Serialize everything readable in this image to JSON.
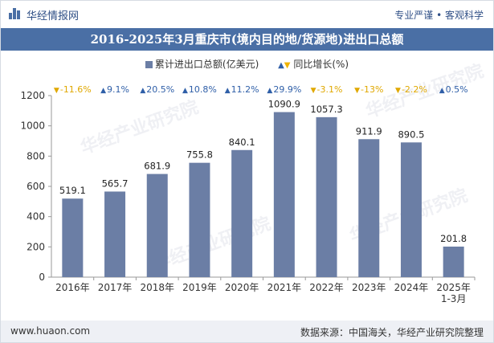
{
  "header": {
    "brand": "华经情报网",
    "tagline": "专业严谨 • 客观科学"
  },
  "title": "2016-2025年3月重庆市(境内目的地/货源地)进出口总额",
  "legend": {
    "bar_label": "累计进出口总额(亿美元)",
    "growth_label": "同比增长(%)"
  },
  "watermark": "华经产业研究院",
  "footer": {
    "site": "www.huaon.com",
    "source": "数据来源：中国海关，华经产业研究院整理"
  },
  "colors": {
    "bar": "#6b7ea5",
    "title_bg": "#4a6fa5",
    "growth_up": "#2f5fa8",
    "growth_down": "#f0b400"
  },
  "chart_data": {
    "type": "bar",
    "title": "2016-2025年3月重庆市(境内目的地/货源地)进出口总额",
    "categories": [
      "2016年",
      "2017年",
      "2018年",
      "2019年",
      "2020年",
      "2021年",
      "2022年",
      "2023年",
      "2024年",
      "2025年\n1-3月"
    ],
    "series": [
      {
        "name": "累计进出口总额(亿美元)",
        "values": [
          519.1,
          565.7,
          681.9,
          755.8,
          840.1,
          1090.9,
          1057.3,
          911.9,
          890.5,
          201.8
        ]
      },
      {
        "name": "同比增长(%)",
        "values": [
          -11.6,
          9.1,
          20.5,
          10.8,
          11.2,
          29.9,
          -3.1,
          -13,
          -2.2,
          0.5
        ],
        "labels": [
          "-11.6%",
          "9.1%",
          "20.5%",
          "10.8%",
          "11.2%",
          "29.9%",
          "-3.1%",
          "-13%",
          "-2.2%",
          "0.5%"
        ]
      }
    ],
    "ylim": [
      0,
      1200
    ],
    "yticks": [
      0,
      200,
      400,
      600,
      800,
      1000,
      1200
    ],
    "grid": false,
    "legend_position": "top"
  }
}
